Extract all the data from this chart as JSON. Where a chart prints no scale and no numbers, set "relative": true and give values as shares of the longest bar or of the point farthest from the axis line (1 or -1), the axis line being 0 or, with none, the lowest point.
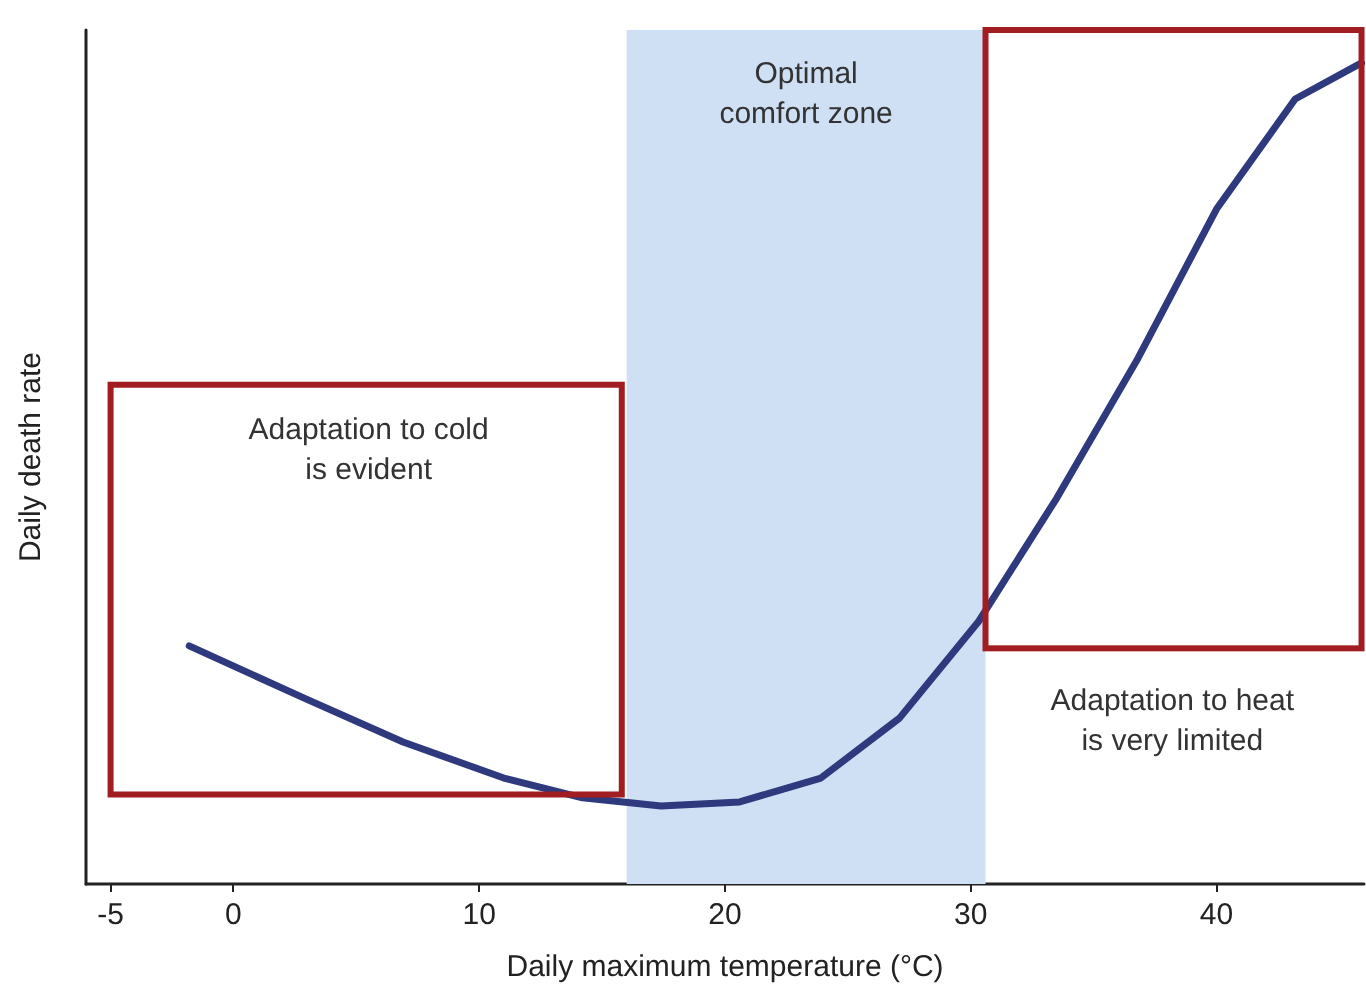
{
  "chart_data": {
    "type": "line",
    "relative": true,
    "xlabel": "Daily maximum temperature (°C)",
    "ylabel": "Daily death rate",
    "x": [
      -1.8,
      2.9,
      6.9,
      11,
      14.2,
      17.4,
      20.6,
      23.9,
      27.1,
      30.3,
      33.5,
      36.8,
      40,
      43.2,
      45.9
    ],
    "series": [
      {
        "color": "#2f3a7e",
        "values": [
          0.29,
          0.226,
          0.173,
          0.129,
          0.105,
          0.095,
          0.1,
          0.129,
          0.202,
          0.319,
          0.47,
          0.64,
          0.822,
          0.956,
          1
        ]
      }
    ],
    "xlim": [
      -6,
      46
    ],
    "xticks": [
      -5,
      0,
      10,
      20,
      30,
      40
    ],
    "bands": [
      {
        "axis": "x",
        "from": 16,
        "to": 30.6,
        "label": "Optimal\ncomfort zone",
        "color": "#cfdff4"
      }
    ],
    "annotations": [
      "Adaptation to cold\nis evident",
      "Adaptation to heat\nis very limited"
    ],
    "tick_labels": "x",
    "grid": false,
    "marker": "none",
    "line_style": "solid"
  }
}
